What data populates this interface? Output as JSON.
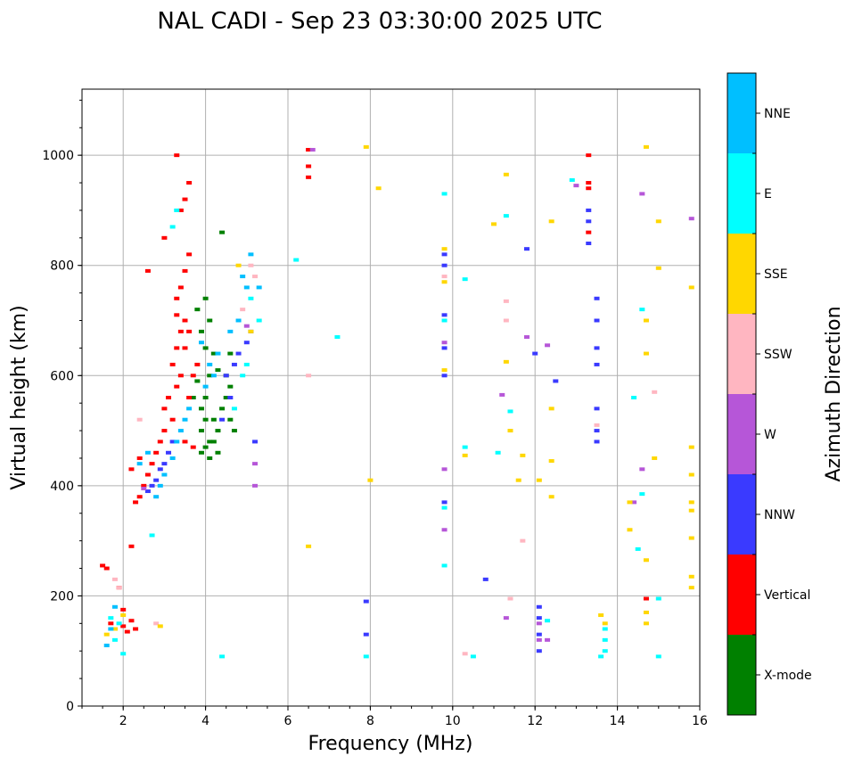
{
  "chart_data": {
    "type": "scatter",
    "title": "NAL CADI - Sep 23 03:30:00 2025 UTC",
    "xlabel": "Frequency (MHz)",
    "ylabel": "Virtual height (km)",
    "xlim": [
      1,
      16
    ],
    "ylim": [
      0,
      1120
    ],
    "xticks": [
      "2",
      "4",
      "6",
      "8",
      "10",
      "12",
      "14",
      "16"
    ],
    "yticks": [
      "0",
      "200",
      "400",
      "600",
      "800",
      "1000"
    ],
    "grid": true,
    "colorbar": {
      "label": "Azimuth Direction",
      "categories": [
        "X-mode",
        "Vertical",
        "NNW",
        "W",
        "SSW",
        "SSE",
        "E",
        "NNE"
      ],
      "colors": [
        "#008000",
        "#ff0000",
        "#3a3aff",
        "#b656d8",
        "#ffb6c1",
        "#ffd700",
        "#00ffff",
        "#00bfff"
      ]
    },
    "series": [
      {
        "name": "X-mode",
        "points": [
          [
            3.8,
            720
          ],
          [
            3.9,
            680
          ],
          [
            4.0,
            650
          ],
          [
            4.1,
            600
          ],
          [
            4.0,
            560
          ],
          [
            3.9,
            540
          ],
          [
            4.2,
            520
          ],
          [
            4.3,
            500
          ],
          [
            4.1,
            480
          ],
          [
            4.0,
            470
          ],
          [
            3.9,
            460
          ],
          [
            4.4,
            540
          ],
          [
            4.5,
            560
          ],
          [
            4.6,
            580
          ],
          [
            4.3,
            610
          ],
          [
            4.2,
            640
          ],
          [
            4.1,
            700
          ],
          [
            4.0,
            740
          ],
          [
            4.5,
            600
          ],
          [
            4.6,
            520
          ],
          [
            4.7,
            500
          ],
          [
            3.8,
            590
          ],
          [
            3.7,
            560
          ],
          [
            4.4,
            860
          ],
          [
            4.2,
            480
          ],
          [
            4.3,
            460
          ],
          [
            4.1,
            450
          ],
          [
            4.0,
            520
          ],
          [
            3.9,
            500
          ],
          [
            4.6,
            640
          ]
        ]
      },
      {
        "name": "Vertical",
        "points": [
          [
            3.6,
            820
          ],
          [
            3.5,
            790
          ],
          [
            3.4,
            760
          ],
          [
            3.3,
            740
          ],
          [
            3.5,
            700
          ],
          [
            3.4,
            680
          ],
          [
            3.3,
            650
          ],
          [
            3.2,
            620
          ],
          [
            3.4,
            600
          ],
          [
            3.3,
            580
          ],
          [
            3.1,
            560
          ],
          [
            3.0,
            540
          ],
          [
            3.2,
            520
          ],
          [
            3.0,
            500
          ],
          [
            2.9,
            480
          ],
          [
            2.8,
            460
          ],
          [
            2.7,
            440
          ],
          [
            2.6,
            420
          ],
          [
            2.5,
            400
          ],
          [
            2.4,
            380
          ],
          [
            2.3,
            370
          ],
          [
            2.2,
            430
          ],
          [
            2.4,
            450
          ],
          [
            3.7,
            600
          ],
          [
            3.6,
            560
          ],
          [
            3.8,
            620
          ],
          [
            3.5,
            650
          ],
          [
            3.6,
            680
          ],
          [
            3.3,
            710
          ],
          [
            3.4,
            900
          ],
          [
            3.5,
            920
          ],
          [
            3.6,
            950
          ],
          [
            3.0,
            850
          ],
          [
            2.6,
            790
          ],
          [
            1.5,
            255
          ],
          [
            1.6,
            250
          ],
          [
            1.9,
            215
          ],
          [
            1.7,
            150
          ],
          [
            1.8,
            140
          ],
          [
            2.0,
            145
          ],
          [
            2.1,
            135
          ],
          [
            2.3,
            140
          ],
          [
            2.0,
            175
          ],
          [
            2.2,
            155
          ],
          [
            6.5,
            1010
          ],
          [
            6.5,
            980
          ],
          [
            6.5,
            960
          ],
          [
            13.3,
            1000
          ],
          [
            13.3,
            950
          ],
          [
            13.3,
            940
          ],
          [
            13.3,
            860
          ],
          [
            14.7,
            195
          ],
          [
            3.3,
            1000
          ],
          [
            3.7,
            470
          ],
          [
            3.5,
            480
          ],
          [
            2.2,
            290
          ]
        ]
      },
      {
        "name": "NNW",
        "points": [
          [
            2.9,
            430
          ],
          [
            2.8,
            410
          ],
          [
            2.7,
            400
          ],
          [
            2.6,
            390
          ],
          [
            3.0,
            440
          ],
          [
            3.1,
            460
          ],
          [
            3.2,
            480
          ],
          [
            4.8,
            640
          ],
          [
            4.7,
            620
          ],
          [
            4.5,
            600
          ],
          [
            4.6,
            560
          ],
          [
            4.4,
            520
          ],
          [
            5.1,
            680
          ],
          [
            5.0,
            660
          ],
          [
            9.8,
            820
          ],
          [
            9.8,
            800
          ],
          [
            9.8,
            710
          ],
          [
            9.8,
            650
          ],
          [
            9.8,
            600
          ],
          [
            9.8,
            370
          ],
          [
            10.8,
            230
          ],
          [
            11.8,
            830
          ],
          [
            12.1,
            180
          ],
          [
            12.1,
            160
          ],
          [
            12.1,
            130
          ],
          [
            12.1,
            100
          ],
          [
            12.5,
            590
          ],
          [
            13.3,
            900
          ],
          [
            13.3,
            880
          ],
          [
            13.3,
            840
          ],
          [
            13.5,
            740
          ],
          [
            13.5,
            700
          ],
          [
            13.5,
            650
          ],
          [
            13.5,
            620
          ],
          [
            13.5,
            540
          ],
          [
            13.5,
            500
          ],
          [
            13.5,
            480
          ],
          [
            7.9,
            190
          ],
          [
            7.9,
            130
          ],
          [
            5.2,
            480
          ],
          [
            12.0,
            640
          ]
        ]
      },
      {
        "name": "W",
        "points": [
          [
            6.6,
            1010
          ],
          [
            12.1,
            150
          ],
          [
            12.1,
            120
          ],
          [
            12.3,
            120
          ],
          [
            13.0,
            945
          ],
          [
            14.6,
            930
          ],
          [
            14.6,
            430
          ],
          [
            14.4,
            370
          ],
          [
            15.8,
            885
          ],
          [
            9.8,
            430
          ],
          [
            9.8,
            320
          ],
          [
            9.8,
            660
          ],
          [
            11.3,
            160
          ],
          [
            11.2,
            565
          ],
          [
            11.8,
            670
          ],
          [
            12.3,
            655
          ],
          [
            5.2,
            440
          ],
          [
            5.2,
            400
          ],
          [
            5.0,
            690
          ],
          [
            2.5,
            395
          ]
        ]
      },
      {
        "name": "SSW",
        "points": [
          [
            6.5,
            600
          ],
          [
            11.3,
            700
          ],
          [
            11.3,
            735
          ],
          [
            14.9,
            570
          ],
          [
            11.4,
            195
          ],
          [
            10.3,
            95
          ],
          [
            5.1,
            800
          ],
          [
            5.2,
            780
          ],
          [
            1.8,
            230
          ],
          [
            1.9,
            215
          ],
          [
            2.8,
            150
          ],
          [
            4.9,
            720
          ],
          [
            2.4,
            520
          ],
          [
            13.5,
            510
          ],
          [
            11.7,
            300
          ],
          [
            9.8,
            780
          ]
        ]
      },
      {
        "name": "SSE",
        "points": [
          [
            7.9,
            1015
          ],
          [
            8.2,
            940
          ],
          [
            11.3,
            965
          ],
          [
            11.0,
            875
          ],
          [
            12.4,
            880
          ],
          [
            12.4,
            540
          ],
          [
            12.4,
            445
          ],
          [
            12.4,
            380
          ],
          [
            11.6,
            410
          ],
          [
            11.4,
            500
          ],
          [
            11.3,
            625
          ],
          [
            11.7,
            455
          ],
          [
            13.6,
            165
          ],
          [
            13.7,
            150
          ],
          [
            14.7,
            1015
          ],
          [
            15.0,
            880
          ],
          [
            15.0,
            795
          ],
          [
            15.8,
            760
          ],
          [
            15.8,
            470
          ],
          [
            15.8,
            420
          ],
          [
            15.8,
            370
          ],
          [
            15.8,
            355
          ],
          [
            15.8,
            305
          ],
          [
            15.8,
            235
          ],
          [
            15.8,
            215
          ],
          [
            14.7,
            700
          ],
          [
            14.7,
            640
          ],
          [
            14.9,
            450
          ],
          [
            14.3,
            370
          ],
          [
            14.3,
            320
          ],
          [
            14.7,
            265
          ],
          [
            14.7,
            170
          ],
          [
            14.7,
            150
          ],
          [
            9.8,
            830
          ],
          [
            9.8,
            770
          ],
          [
            9.8,
            610
          ],
          [
            8.0,
            410
          ],
          [
            1.6,
            130
          ],
          [
            1.8,
            140
          ],
          [
            2.0,
            165
          ],
          [
            2.9,
            145
          ],
          [
            6.5,
            290
          ],
          [
            12.1,
            410
          ],
          [
            10.3,
            455
          ],
          [
            5.1,
            680
          ],
          [
            4.8,
            800
          ]
        ]
      },
      {
        "name": "E",
        "points": [
          [
            3.3,
            900
          ],
          [
            3.2,
            870
          ],
          [
            4.7,
            540
          ],
          [
            4.9,
            600
          ],
          [
            5.0,
            620
          ],
          [
            5.1,
            740
          ],
          [
            5.3,
            700
          ],
          [
            9.8,
            930
          ],
          [
            9.8,
            700
          ],
          [
            9.8,
            360
          ],
          [
            9.8,
            255
          ],
          [
            10.3,
            775
          ],
          [
            10.3,
            470
          ],
          [
            10.5,
            90
          ],
          [
            11.3,
            890
          ],
          [
            11.4,
            535
          ],
          [
            12.3,
            155
          ],
          [
            13.7,
            140
          ],
          [
            13.7,
            120
          ],
          [
            13.7,
            100
          ],
          [
            13.6,
            90
          ],
          [
            14.6,
            720
          ],
          [
            14.6,
            385
          ],
          [
            14.5,
            285
          ],
          [
            15.0,
            195
          ],
          [
            15.0,
            90
          ],
          [
            14.4,
            560
          ],
          [
            12.9,
            955
          ],
          [
            1.7,
            160
          ],
          [
            1.9,
            150
          ],
          [
            1.8,
            120
          ],
          [
            2.0,
            95
          ],
          [
            4.4,
            90
          ],
          [
            7.9,
            90
          ],
          [
            6.2,
            810
          ],
          [
            7.2,
            670
          ],
          [
            2.7,
            310
          ],
          [
            11.1,
            460
          ]
        ]
      },
      {
        "name": "NNE",
        "points": [
          [
            4.9,
            780
          ],
          [
            5.0,
            760
          ],
          [
            4.8,
            700
          ],
          [
            4.6,
            680
          ],
          [
            4.3,
            640
          ],
          [
            4.2,
            600
          ],
          [
            4.0,
            580
          ],
          [
            3.6,
            540
          ],
          [
            3.5,
            520
          ],
          [
            3.4,
            500
          ],
          [
            3.3,
            480
          ],
          [
            3.2,
            450
          ],
          [
            3.0,
            420
          ],
          [
            2.9,
            400
          ],
          [
            2.8,
            380
          ],
          [
            1.8,
            180
          ],
          [
            1.7,
            140
          ],
          [
            1.6,
            110
          ],
          [
            5.1,
            820
          ],
          [
            5.3,
            760
          ],
          [
            3.9,
            660
          ],
          [
            4.1,
            620
          ],
          [
            2.4,
            440
          ],
          [
            2.6,
            460
          ]
        ]
      }
    ]
  }
}
